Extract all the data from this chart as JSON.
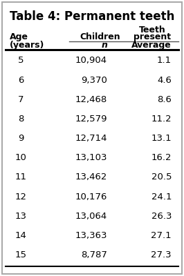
{
  "title": "Table 4: Permanent teeth",
  "col1_header_line1": "Age",
  "col1_header_line2": "(years)",
  "col2_header_top": "Children",
  "col2_header_bottom": "n",
  "col3_header_top": "Teeth\npresent",
  "col3_header_bottom": "Average",
  "ages": [
    "5",
    "6",
    "7",
    "8",
    "9",
    "10",
    "11",
    "12",
    "13",
    "14",
    "15"
  ],
  "children": [
    "10,904",
    "9,370",
    "12,468",
    "12,579",
    "12,714",
    "13,103",
    "13,462",
    "10,176",
    "13,064",
    "13,363",
    "8,787"
  ],
  "averages": [
    "1.1",
    "4.6",
    "8.6",
    "11.2",
    "13.1",
    "16.2",
    "20.5",
    "24.1",
    "26.3",
    "27.1",
    "27.3"
  ],
  "bg_color": "#ffffff",
  "border_color": "#aaaaaa",
  "text_color": "#000000",
  "title_fontsize": 12,
  "header_fontsize": 9,
  "data_fontsize": 9.5
}
